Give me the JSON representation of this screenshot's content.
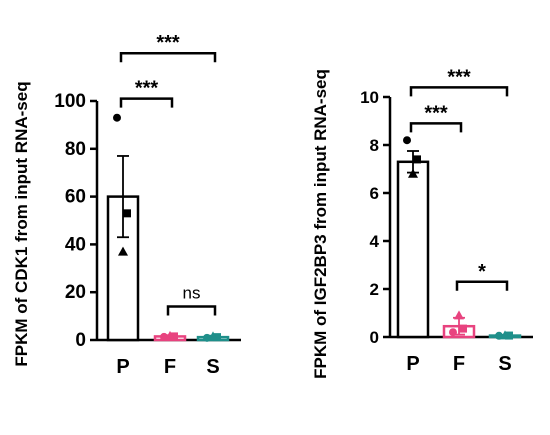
{
  "colors": {
    "P": "#000000",
    "F": "#e8437f",
    "S": "#1f8f8a"
  },
  "chart_data": [
    {
      "type": "bar",
      "categories": [
        "P",
        "F",
        "S"
      ],
      "values": [
        60,
        1.5,
        1.2
      ],
      "errors": [
        17,
        0.5,
        0.6
      ],
      "points": [
        [
          93,
          53,
          37
        ],
        [
          1.3,
          1.5,
          1.7
        ],
        [
          0.9,
          1.2,
          1.5
        ]
      ],
      "ylabel": "FPKM of CDK1 from input RNA-seq",
      "ylim": [
        0,
        100
      ],
      "yticks": [
        0,
        20,
        40,
        60,
        80,
        100
      ],
      "significance": [
        {
          "from": "P",
          "to": "S",
          "label": "***",
          "y": 120
        },
        {
          "from": "P",
          "to": "F",
          "label": "***",
          "y": 101
        },
        {
          "from": "F",
          "to": "S",
          "label": "ns",
          "y": 14
        }
      ]
    },
    {
      "type": "bar",
      "categories": [
        "P",
        "F",
        "S"
      ],
      "values": [
        7.3,
        0.45,
        0.06
      ],
      "errors": [
        0.45,
        0.35,
        0.03
      ],
      "points": [
        [
          8.2,
          7.4,
          6.8
        ],
        [
          0.2,
          0.35,
          0.9
        ],
        [
          0.05,
          0.06,
          0.07
        ]
      ],
      "ylabel": "FPKM of IGF2BP3 from input RNA-seq",
      "ylim": [
        0,
        10
      ],
      "yticks": [
        0,
        2,
        4,
        6,
        8,
        10
      ],
      "significance": [
        {
          "from": "P",
          "to": "S",
          "label": "***",
          "y": 10.4
        },
        {
          "from": "P",
          "to": "F",
          "label": "***",
          "y": 8.9
        },
        {
          "from": "F",
          "to": "S",
          "label": "*",
          "y": 2.3
        }
      ]
    }
  ]
}
